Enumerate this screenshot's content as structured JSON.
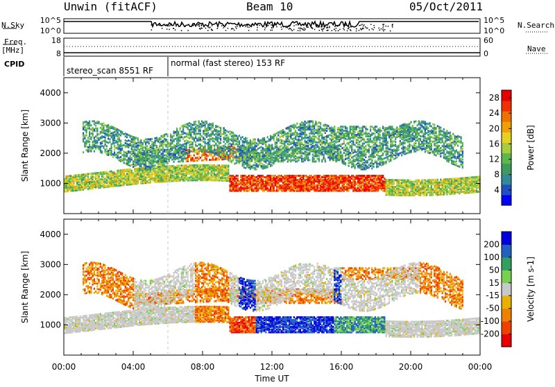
{
  "header": {
    "station": "Unwin (fitACF)",
    "beam": "Beam 10",
    "date": "05/Oct/2011"
  },
  "top_panels": {
    "nsky_label": "N.Sky",
    "nsearch_label": "N.Search",
    "noise_ticks": [
      "10^5",
      "10^0"
    ],
    "freq_label_1": "Freq.",
    "freq_label_2": "[MHz]",
    "freq_ticks": [
      "18",
      "8"
    ],
    "nave_label": "Nave",
    "nave_ticks": [
      "60",
      "0"
    ],
    "cpid_label": "CPID",
    "cpid_segments": [
      {
        "label": "stereo_scan 8551 RF",
        "start_hour": 0,
        "end_hour": 6.0
      },
      {
        "label": "normal (fast stereo) 153 RF",
        "start_hour": 6.0,
        "end_hour": 24
      }
    ]
  },
  "chart_data": [
    {
      "type": "heatmap",
      "name": "power",
      "xlabel": "",
      "ylabel": "Slant Range [km]",
      "xlim": [
        0,
        24
      ],
      "ylim": [
        0,
        4500
      ],
      "yticks": [
        "1000",
        "2000",
        "3000",
        "4000"
      ],
      "colorbar_label": "Power [dB]",
      "colorbar_ticks": [
        "4",
        "8",
        "12",
        "16",
        "20",
        "24",
        "28"
      ],
      "colorbar_range": [
        0,
        30
      ],
      "colors": [
        "#0000ff",
        "#1f4fc0",
        "#2f8a9a",
        "#3d9c5c",
        "#5cb84c",
        "#a8cc3c",
        "#e8d020",
        "#f0a000",
        "#f07000",
        "#f03000",
        "#e80000"
      ]
    },
    {
      "type": "heatmap",
      "name": "velocity",
      "xlabel": "Time UT",
      "ylabel": "Slant Range [km]",
      "xlim": [
        0,
        24
      ],
      "ylim": [
        0,
        4500
      ],
      "xticks": [
        "00:00",
        "04:00",
        "08:00",
        "12:00",
        "16:00",
        "20:00",
        "00:00"
      ],
      "yticks": [
        "1000",
        "2000",
        "3000",
        "4000"
      ],
      "colorbar_label": "Velocity [m s-1]",
      "colorbar_ticks": [
        "200",
        "100",
        "50",
        "15",
        "-15",
        "-50",
        "-100",
        "-200"
      ],
      "colorbar_range": [
        -250,
        250
      ],
      "colors": [
        "#e80000",
        "#f04000",
        "#f08000",
        "#e8b000",
        "#c8c8c8",
        "#78d050",
        "#30a060",
        "#2060c0",
        "#0000e0"
      ]
    }
  ]
}
